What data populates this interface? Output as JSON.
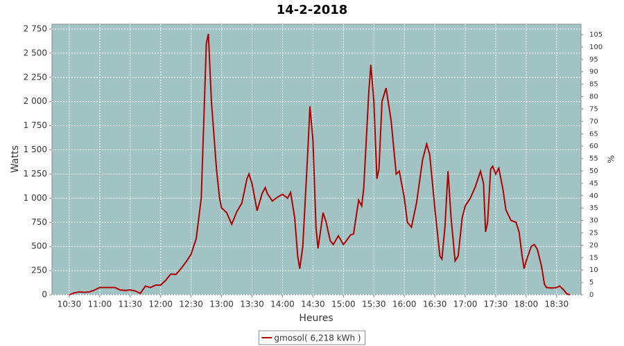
{
  "chart_data": {
    "type": "line",
    "title": "14-2-2018",
    "x_label": "Heures",
    "y_label": "Watts",
    "y2_label": "%",
    "grid": true,
    "background": "#a1c3c3",
    "xlim": [
      "10:13",
      "18:54"
    ],
    "xticks": [
      "10:30",
      "11:00",
      "11:30",
      "12:00",
      "12:30",
      "13:00",
      "13:30",
      "14:00",
      "14:30",
      "15:00",
      "15:30",
      "16:00",
      "16:30",
      "17:00",
      "17:30",
      "18:00",
      "18:30"
    ],
    "ylim": [
      0,
      2800
    ],
    "yticks": [
      0,
      250,
      500,
      750,
      {
        "value": 1000,
        "label": "1 000"
      },
      {
        "value": 1250,
        "label": "1 250"
      },
      {
        "value": 1500,
        "label": "1 500"
      },
      {
        "value": 1750,
        "label": "1 750"
      },
      {
        "value": 2000,
        "label": "2 000"
      },
      {
        "value": 2250,
        "label": "2 250"
      },
      {
        "value": 2500,
        "label": "2 500"
      },
      {
        "value": 2750,
        "label": "2 750"
      }
    ],
    "y2lim": [
      0,
      109.2
    ],
    "y2ticks": [
      0,
      5,
      10,
      15,
      20,
      25,
      30,
      35,
      40,
      45,
      50,
      55,
      60,
      65,
      70,
      75,
      80,
      85,
      90,
      95,
      100,
      105
    ],
    "legend": "bottom",
    "x": [
      "10:30",
      "10:35",
      "10:40",
      "10:45",
      "10:50",
      "10:55",
      "11:00",
      "11:05",
      "11:10",
      "11:15",
      "11:20",
      "11:25",
      "11:30",
      "11:35",
      "11:40",
      "11:45",
      "11:50",
      "11:55",
      "12:00",
      "12:05",
      "12:10",
      "12:15",
      "12:20",
      "12:25",
      "12:30",
      "12:35",
      "12:40",
      "12:45",
      "12:47",
      "12:50",
      "12:55",
      "12:58",
      "13:00",
      "13:05",
      "13:10",
      "13:15",
      "13:20",
      "13:25",
      "13:27",
      "13:30",
      "13:35",
      "13:40",
      "13:43",
      "13:45",
      "13:50",
      "13:55",
      "14:00",
      "14:05",
      "14:08",
      "14:12",
      "14:15",
      "14:17",
      "14:20",
      "14:25",
      "14:27",
      "14:30",
      "14:33",
      "14:35",
      "14:38",
      "14:40",
      "14:43",
      "14:47",
      "14:50",
      "14:55",
      "15:00",
      "15:03",
      "15:07",
      "15:10",
      "15:15",
      "15:18",
      "15:20",
      "15:25",
      "15:27",
      "15:30",
      "15:33",
      "15:35",
      "15:38",
      "15:42",
      "15:47",
      "15:52",
      "15:55",
      "16:00",
      "16:03",
      "16:07",
      "16:12",
      "16:18",
      "16:22",
      "16:25",
      "16:30",
      "16:35",
      "16:37",
      "16:40",
      "16:43",
      "16:46",
      "16:50",
      "16:53",
      "16:57",
      "17:00",
      "17:05",
      "17:10",
      "17:15",
      "17:18",
      "17:20",
      "17:22",
      "17:25",
      "17:27",
      "17:30",
      "17:33",
      "17:37",
      "17:40",
      "17:45",
      "17:50",
      "17:53",
      "17:56",
      "17:58",
      "18:00",
      "18:05",
      "18:08",
      "18:11",
      "18:15",
      "18:18",
      "18:20",
      "18:25",
      "18:30",
      "18:33",
      "18:37",
      "18:40",
      "18:43"
    ],
    "series": [
      {
        "name": "gmosol( 6,218 kWh )",
        "color": "#b00000",
        "values": [
          0,
          20,
          30,
          25,
          30,
          50,
          75,
          75,
          75,
          75,
          50,
          45,
          50,
          40,
          15,
          90,
          75,
          100,
          100,
          150,
          215,
          210,
          270,
          340,
          420,
          580,
          1000,
          2600,
          2700,
          2000,
          1300,
          1000,
          900,
          850,
          730,
          860,
          950,
          1200,
          1250,
          1150,
          870,
          1050,
          1110,
          1050,
          970,
          1010,
          1040,
          1000,
          1060,
          800,
          400,
          270,
          500,
          1500,
          1950,
          1600,
          700,
          480,
          700,
          850,
          750,
          560,
          520,
          610,
          520,
          560,
          620,
          630,
          980,
          920,
          1100,
          2100,
          2380,
          2000,
          1200,
          1300,
          2000,
          2140,
          1800,
          1250,
          1280,
          1000,
          750,
          700,
          950,
          1400,
          1560,
          1450,
          900,
          400,
          370,
          700,
          1280,
          800,
          350,
          400,
          800,
          920,
          1000,
          1120,
          1280,
          1150,
          650,
          750,
          1300,
          1330,
          1250,
          1310,
          1100,
          880,
          770,
          750,
          650,
          400,
          270,
          350,
          500,
          520,
          470,
          300,
          110,
          75,
          70,
          75,
          90,
          50,
          10,
          0
        ]
      }
    ]
  }
}
